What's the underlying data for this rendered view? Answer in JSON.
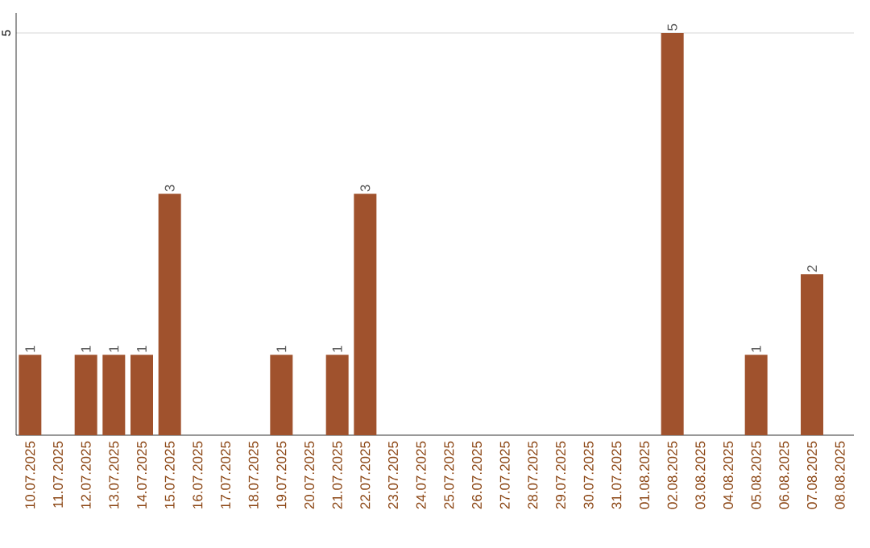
{
  "chart_data": {
    "type": "bar",
    "categories": [
      "10.07.2025",
      "11.07.2025",
      "12.07.2025",
      "13.07.2025",
      "14.07.2025",
      "15.07.2025",
      "16.07.2025",
      "17.07.2025",
      "18.07.2025",
      "19.07.2025",
      "20.07.2025",
      "21.07.2025",
      "22.07.2025",
      "23.07.2025",
      "24.07.2025",
      "25.07.2025",
      "26.07.2025",
      "27.07.2025",
      "28.07.2025",
      "29.07.2025",
      "30.07.2025",
      "31.07.2025",
      "01.08.2025",
      "02.08.2025",
      "03.08.2025",
      "04.08.2025",
      "05.08.2025",
      "06.08.2025",
      "07.08.2025",
      "08.08.2025"
    ],
    "values": [
      1,
      0,
      1,
      1,
      1,
      3,
      0,
      0,
      0,
      1,
      0,
      1,
      3,
      0,
      0,
      0,
      0,
      0,
      0,
      0,
      0,
      0,
      0,
      5,
      0,
      0,
      1,
      0,
      2,
      0
    ],
    "value_labels": [
      "1",
      null,
      "1",
      "1",
      "1",
      "3",
      null,
      null,
      null,
      "1",
      null,
      "1",
      "3",
      null,
      null,
      null,
      null,
      null,
      null,
      null,
      null,
      null,
      null,
      "5",
      null,
      null,
      "1",
      null,
      "2",
      null
    ],
    "color": "#a0522d",
    "ylim": [
      0,
      5.25
    ],
    "yticks": [
      5
    ],
    "grid": "y"
  }
}
